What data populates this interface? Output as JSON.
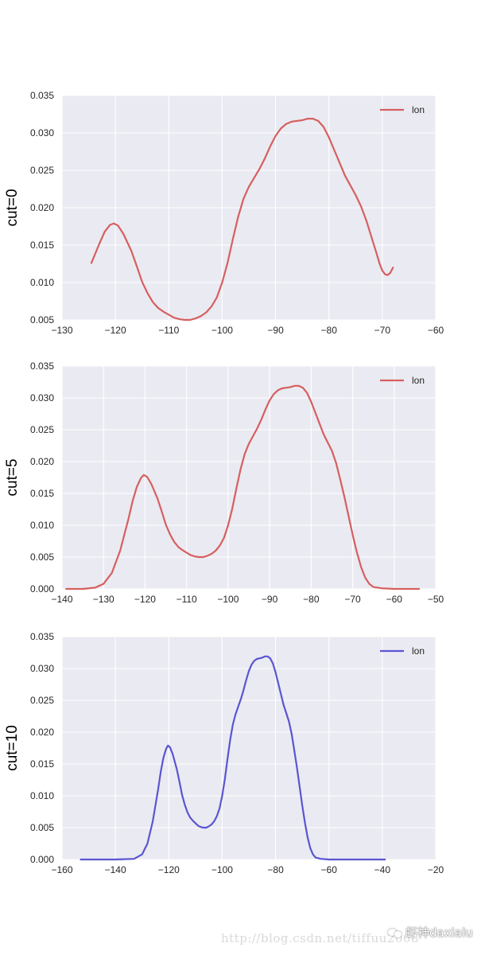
{
  "chart_data": [
    {
      "type": "line",
      "ylabel": "cut=0",
      "xlim": [
        -130,
        -60
      ],
      "ylim": [
        0.005,
        0.035
      ],
      "xticks": [
        -130,
        -120,
        -110,
        -100,
        -90,
        -80,
        -70,
        -60
      ],
      "yticks": [
        0.005,
        0.01,
        0.015,
        0.02,
        0.025,
        0.03,
        0.035
      ],
      "xtick_labels": [
        "−130",
        "−120",
        "−110",
        "−100",
        "−90",
        "−80",
        "−70",
        "−60"
      ],
      "ytick_labels": [
        "0.005",
        "0.010",
        "0.015",
        "0.020",
        "0.025",
        "0.030",
        "0.035"
      ],
      "grid": true,
      "legend": "top-right",
      "series": [
        {
          "name": "lon",
          "color": "#d65f5f",
          "x": [
            -124.5,
            -123,
            -122,
            -121,
            -120.3,
            -119.5,
            -118.5,
            -117,
            -116,
            -115,
            -114,
            -113,
            -112,
            -111,
            -110,
            -109,
            -108,
            -107,
            -106,
            -105,
            -104,
            -103,
            -102,
            -101,
            -100,
            -99,
            -98,
            -97,
            -96,
            -95,
            -94,
            -93,
            -92,
            -91,
            -90,
            -89,
            -88,
            -87,
            -86,
            -85,
            -84,
            -83.5,
            -83,
            -82,
            -81,
            -80,
            -79,
            -78,
            -77,
            -76,
            -75,
            -74,
            -73,
            -72,
            -71,
            -70.5,
            -70,
            -69.5,
            -69,
            -68.5,
            -68
          ],
          "y": [
            0.0126,
            0.0152,
            0.0168,
            0.0177,
            0.0179,
            0.0176,
            0.0165,
            0.0142,
            0.0122,
            0.0101,
            0.0086,
            0.0074,
            0.0066,
            0.0061,
            0.0057,
            0.0053,
            0.0051,
            0.005,
            0.005,
            0.0052,
            0.0055,
            0.006,
            0.0068,
            0.008,
            0.01,
            0.0126,
            0.0158,
            0.0188,
            0.0212,
            0.0228,
            0.024,
            0.0252,
            0.0266,
            0.0282,
            0.0296,
            0.0306,
            0.0312,
            0.0315,
            0.0316,
            0.0317,
            0.0319,
            0.0319,
            0.0319,
            0.0316,
            0.0308,
            0.0294,
            0.0277,
            0.026,
            0.0243,
            0.023,
            0.0217,
            0.0202,
            0.0183,
            0.016,
            0.0137,
            0.0125,
            0.0116,
            0.0111,
            0.011,
            0.0113,
            0.012
          ]
        }
      ]
    },
    {
      "type": "line",
      "ylabel": "cut=5",
      "xlim": [
        -140,
        -50
      ],
      "ylim": [
        0.0,
        0.035
      ],
      "xticks": [
        -140,
        -130,
        -120,
        -110,
        -100,
        -90,
        -80,
        -70,
        -60,
        -50
      ],
      "yticks": [
        0.0,
        0.005,
        0.01,
        0.015,
        0.02,
        0.025,
        0.03,
        0.035
      ],
      "xtick_labels": [
        "−140",
        "−130",
        "−120",
        "−110",
        "−100",
        "−90",
        "−80",
        "−70",
        "−60",
        "−50"
      ],
      "ytick_labels": [
        "0.000",
        "0.005",
        "0.010",
        "0.015",
        "0.020",
        "0.025",
        "0.030",
        "0.035"
      ],
      "grid": true,
      "legend": "top-right",
      "series": [
        {
          "name": "lon",
          "color": "#d65f5f",
          "x": [
            -139,
            -135,
            -132,
            -130,
            -128,
            -126,
            -125,
            -124,
            -123,
            -122,
            -121,
            -120.3,
            -119.5,
            -118.5,
            -117,
            -116,
            -115,
            -114,
            -113,
            -112,
            -111,
            -110,
            -109,
            -108,
            -107,
            -106,
            -105,
            -104,
            -103,
            -102,
            -101,
            -100,
            -99,
            -98,
            -97,
            -96,
            -95,
            -94,
            -93,
            -92,
            -91,
            -90,
            -89,
            -88,
            -87,
            -86,
            -85,
            -84,
            -83.5,
            -83,
            -82,
            -81,
            -80,
            -79,
            -78,
            -77,
            -76,
            -75,
            -74,
            -73,
            -72,
            -71,
            -70,
            -69,
            -68,
            -67,
            -66,
            -65,
            -63,
            -60,
            -54
          ],
          "y": [
            0.0,
            0.0,
            0.0002,
            0.0008,
            0.0025,
            0.006,
            0.0085,
            0.011,
            0.0138,
            0.016,
            0.0174,
            0.0179,
            0.0176,
            0.0165,
            0.0142,
            0.0122,
            0.0101,
            0.0086,
            0.0074,
            0.0066,
            0.0061,
            0.0057,
            0.0053,
            0.0051,
            0.005,
            0.005,
            0.0052,
            0.0055,
            0.006,
            0.0068,
            0.008,
            0.01,
            0.0126,
            0.0158,
            0.0188,
            0.0212,
            0.0228,
            0.024,
            0.0252,
            0.0266,
            0.0282,
            0.0296,
            0.0306,
            0.0312,
            0.0315,
            0.0316,
            0.0317,
            0.0319,
            0.0319,
            0.0319,
            0.0316,
            0.0308,
            0.0294,
            0.0277,
            0.026,
            0.0243,
            0.023,
            0.0217,
            0.0198,
            0.0172,
            0.0145,
            0.0115,
            0.0085,
            0.0058,
            0.0035,
            0.0018,
            0.0008,
            0.0003,
            0.0001,
            0.0,
            0.0
          ]
        }
      ]
    },
    {
      "type": "line",
      "ylabel": "cut=10",
      "xlim": [
        -160,
        -20
      ],
      "ylim": [
        0.0,
        0.035
      ],
      "xticks": [
        -160,
        -140,
        -120,
        -100,
        -80,
        -60,
        -40,
        -20
      ],
      "yticks": [
        0.0,
        0.005,
        0.01,
        0.015,
        0.02,
        0.025,
        0.03,
        0.035
      ],
      "xtick_labels": [
        "−160",
        "−140",
        "−120",
        "−100",
        "−80",
        "−60",
        "−40",
        "−20"
      ],
      "ytick_labels": [
        "0.000",
        "0.005",
        "0.010",
        "0.015",
        "0.020",
        "0.025",
        "0.030",
        "0.035"
      ],
      "grid": true,
      "legend": "top-right",
      "series": [
        {
          "name": "lon",
          "color": "#5a55d2",
          "x": [
            -153,
            -140,
            -133,
            -130,
            -128,
            -126,
            -125,
            -124,
            -123,
            -122,
            -121,
            -120.3,
            -119.5,
            -118.5,
            -117,
            -116,
            -115,
            -114,
            -113,
            -112,
            -111,
            -110,
            -109,
            -108,
            -107,
            -106,
            -105,
            -104,
            -103,
            -102,
            -101,
            -100,
            -99,
            -98,
            -97,
            -96,
            -95,
            -94,
            -93,
            -92,
            -91,
            -90,
            -89,
            -88,
            -87,
            -86,
            -85,
            -84,
            -83.5,
            -83,
            -82,
            -81,
            -80,
            -79,
            -78,
            -77,
            -76,
            -75,
            -74,
            -73,
            -72,
            -71,
            -70,
            -69,
            -68,
            -67,
            -66,
            -65,
            -63,
            -60,
            -50,
            -39
          ],
          "y": [
            0.0,
            0.0,
            0.0001,
            0.0008,
            0.0025,
            0.006,
            0.0085,
            0.011,
            0.0138,
            0.016,
            0.0174,
            0.0179,
            0.0176,
            0.0165,
            0.0142,
            0.0122,
            0.0101,
            0.0086,
            0.0074,
            0.0066,
            0.0061,
            0.0057,
            0.0053,
            0.0051,
            0.005,
            0.005,
            0.0052,
            0.0055,
            0.006,
            0.0068,
            0.008,
            0.01,
            0.0126,
            0.0158,
            0.0188,
            0.0212,
            0.0228,
            0.024,
            0.0252,
            0.0266,
            0.0282,
            0.0296,
            0.0306,
            0.0312,
            0.0315,
            0.0316,
            0.0317,
            0.0319,
            0.0319,
            0.0319,
            0.0316,
            0.0308,
            0.0294,
            0.0277,
            0.026,
            0.0243,
            0.023,
            0.0217,
            0.0198,
            0.0172,
            0.0145,
            0.0115,
            0.0085,
            0.0058,
            0.0035,
            0.0018,
            0.0008,
            0.0003,
            0.0001,
            0.0,
            0.0,
            0.0
          ]
        }
      ]
    }
  ],
  "watermark": {
    "url": "http://blog.csdn.net/tiffuu2008",
    "brand": "虾神daxialu"
  }
}
